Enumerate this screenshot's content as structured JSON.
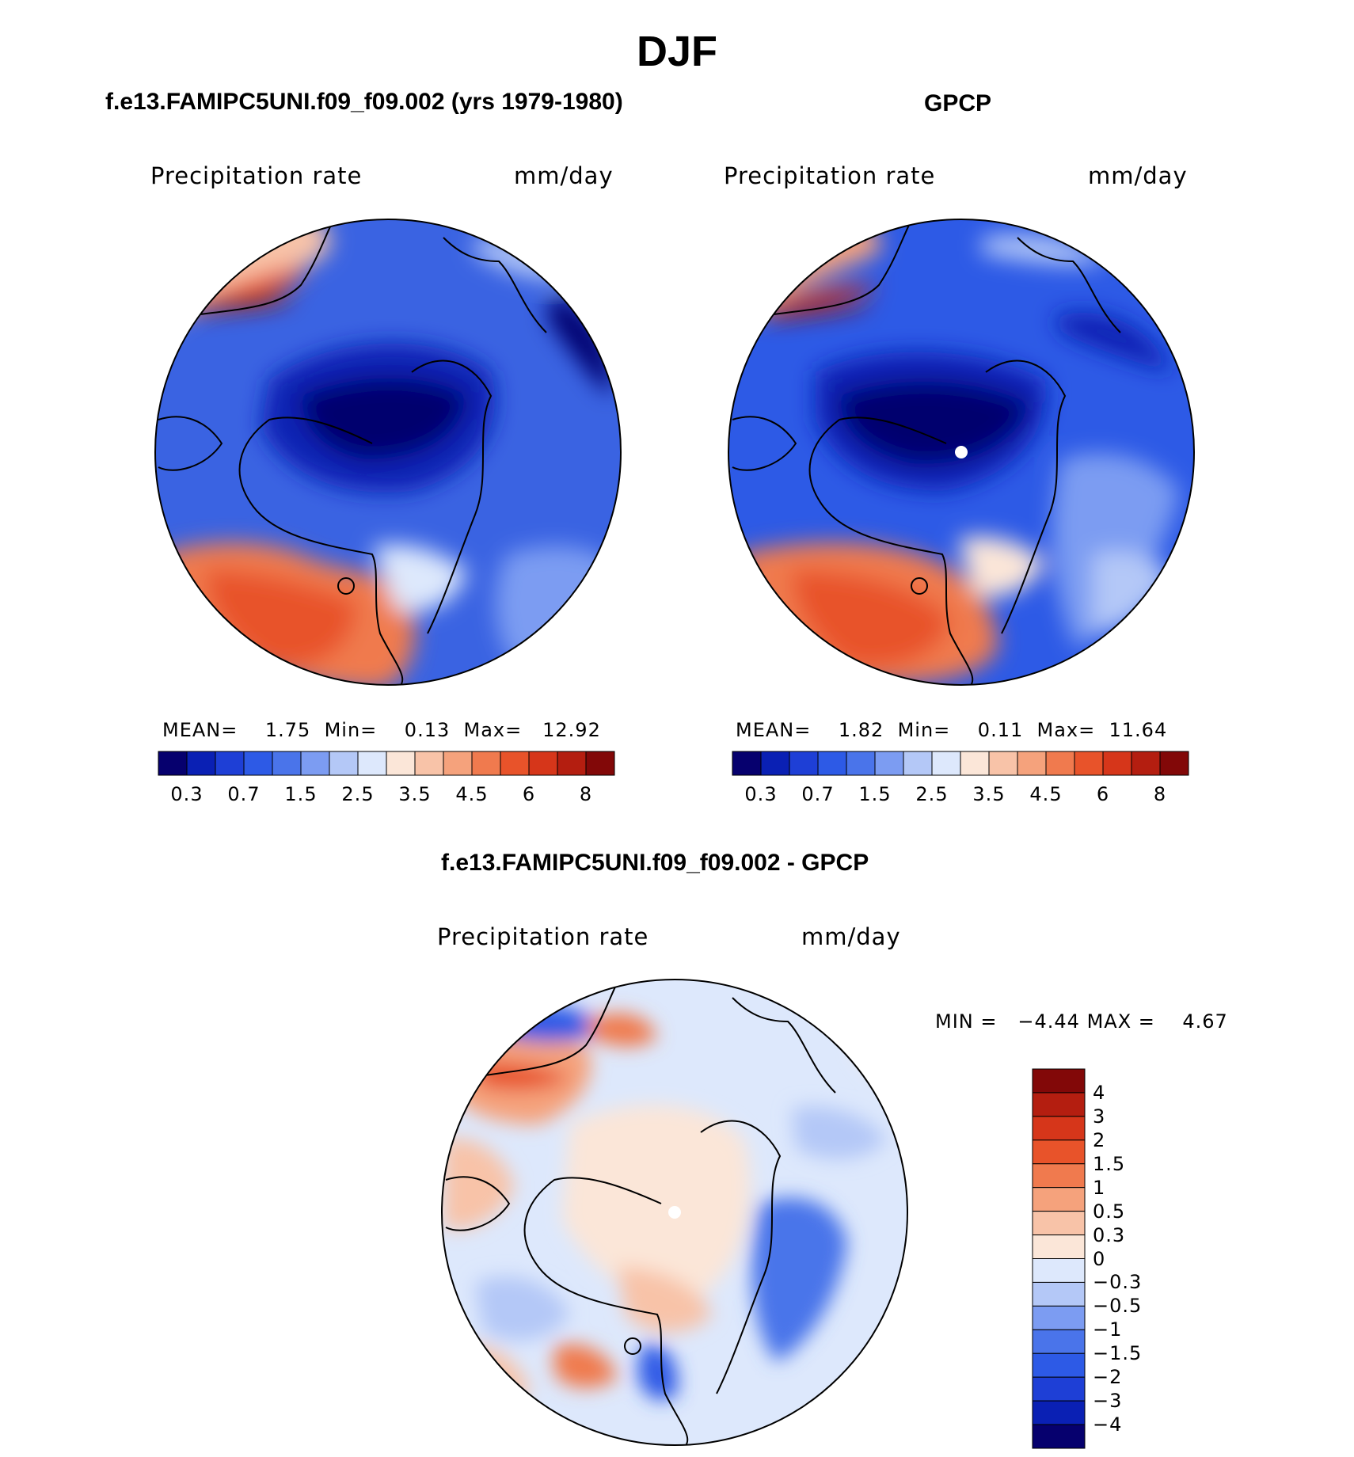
{
  "main_title": "DJF",
  "panels": [
    {
      "title": "f.e13.FAMIPC5UNI.f09_f09.002 (yrs 1979-1980)",
      "var_label": "Precipitation rate",
      "units": "mm/day",
      "stats": {
        "mean_label": "MEAN=",
        "mean": "1.75",
        "min_label": "Min=",
        "min": "0.13",
        "max_label": "Max=",
        "max": "12.92"
      },
      "colorbar_ticks": [
        "0.3",
        "0.7",
        "1.5",
        "2.5",
        "3.5",
        "4.5",
        "6",
        "8"
      ]
    },
    {
      "title": "GPCP",
      "var_label": "Precipitation rate",
      "units": "mm/day",
      "stats": {
        "mean_label": "MEAN=",
        "mean": "1.82",
        "min_label": "Min=",
        "min": "0.11",
        "max_label": "Max=",
        "max": "11.64"
      },
      "colorbar_ticks": [
        "0.3",
        "0.7",
        "1.5",
        "2.5",
        "3.5",
        "4.5",
        "6",
        "8"
      ]
    },
    {
      "title": "f.e13.FAMIPC5UNI.f09_f09.002 - GPCP",
      "var_label": "Precipitation rate",
      "units": "mm/day",
      "stats": {
        "min_label": "MIN =",
        "min": "−4.44",
        "max_label": "MAX =",
        "max": "4.67"
      },
      "colorbar_ticks": [
        "4",
        "3",
        "2",
        "1.5",
        "1",
        "0.5",
        "0.3",
        "0",
        "−0.3",
        "−0.5",
        "−1",
        "−1.5",
        "−2",
        "−3",
        "−4"
      ]
    }
  ],
  "colors": {
    "abs_palette": [
      "#06006e",
      "#0a20b4",
      "#1e3fd6",
      "#2d5ae6",
      "#4a74ea",
      "#7c9cf2",
      "#b4c8f7",
      "#dde8fc",
      "#fbe6d8",
      "#f8c3a8",
      "#f5a27c",
      "#f07a4e",
      "#e8532a",
      "#d6361a",
      "#b41e10",
      "#820808"
    ],
    "diff_palette": [
      "#820808",
      "#b41e10",
      "#d6361a",
      "#e8532a",
      "#f07a4e",
      "#f5a27c",
      "#f8c3a8",
      "#fbe6d8",
      "#dde8fc",
      "#b4c8f7",
      "#7c9cf2",
      "#4a74ea",
      "#2d5ae6",
      "#1e3fd6",
      "#0a20b4",
      "#06006e"
    ]
  }
}
